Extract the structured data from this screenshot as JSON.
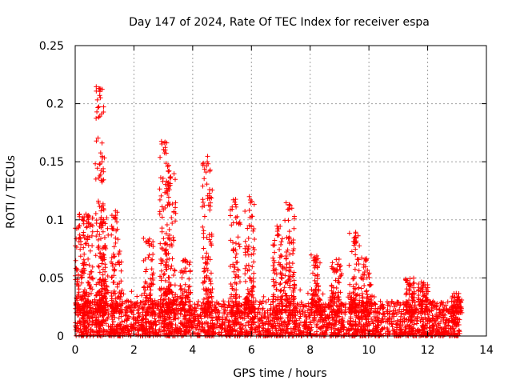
{
  "chart_data": {
    "type": "scatter",
    "title": "Day 147 of 2024, Rate Of TEC Index for receiver espa",
    "xlabel": "GPS time / hours",
    "ylabel": "ROTI / TECUs",
    "xlim": [
      0,
      14
    ],
    "ylim": [
      0,
      0.25
    ],
    "xticks": [
      0,
      2,
      4,
      6,
      8,
      10,
      12,
      14
    ],
    "xtick_labels": [
      "0",
      "2",
      "4",
      "6",
      "8",
      "10",
      "12",
      "14"
    ],
    "yticks": [
      0,
      0.05,
      0.1,
      0.15,
      0.2,
      0.25
    ],
    "ytick_labels": [
      "0",
      "0.05",
      "0.1",
      "0.15",
      "0.2",
      "0.25"
    ],
    "grid": true,
    "marker": "+",
    "color": "#ff0000",
    "series": [
      {
        "name": "ROTI",
        "x_range": [
          0,
          13.1
        ],
        "baseline_range": [
          0.0,
          0.03
        ],
        "bursts": [
          {
            "x": 0.15,
            "max": 0.105
          },
          {
            "x": 0.45,
            "max": 0.105
          },
          {
            "x": 0.85,
            "max": 0.215
          },
          {
            "x": 0.95,
            "max": 0.115
          },
          {
            "x": 1.4,
            "max": 0.108
          },
          {
            "x": 2.5,
            "max": 0.085
          },
          {
            "x": 3.05,
            "max": 0.168
          },
          {
            "x": 3.25,
            "max": 0.14
          },
          {
            "x": 3.75,
            "max": 0.067
          },
          {
            "x": 4.5,
            "max": 0.155
          },
          {
            "x": 5.45,
            "max": 0.118
          },
          {
            "x": 5.95,
            "max": 0.12
          },
          {
            "x": 6.9,
            "max": 0.095
          },
          {
            "x": 7.3,
            "max": 0.117
          },
          {
            "x": 8.2,
            "max": 0.07
          },
          {
            "x": 8.9,
            "max": 0.067
          },
          {
            "x": 9.5,
            "max": 0.09
          },
          {
            "x": 9.9,
            "max": 0.068
          },
          {
            "x": 11.4,
            "max": 0.05
          },
          {
            "x": 11.85,
            "max": 0.048
          },
          {
            "x": 13.0,
            "max": 0.037
          }
        ]
      }
    ]
  }
}
